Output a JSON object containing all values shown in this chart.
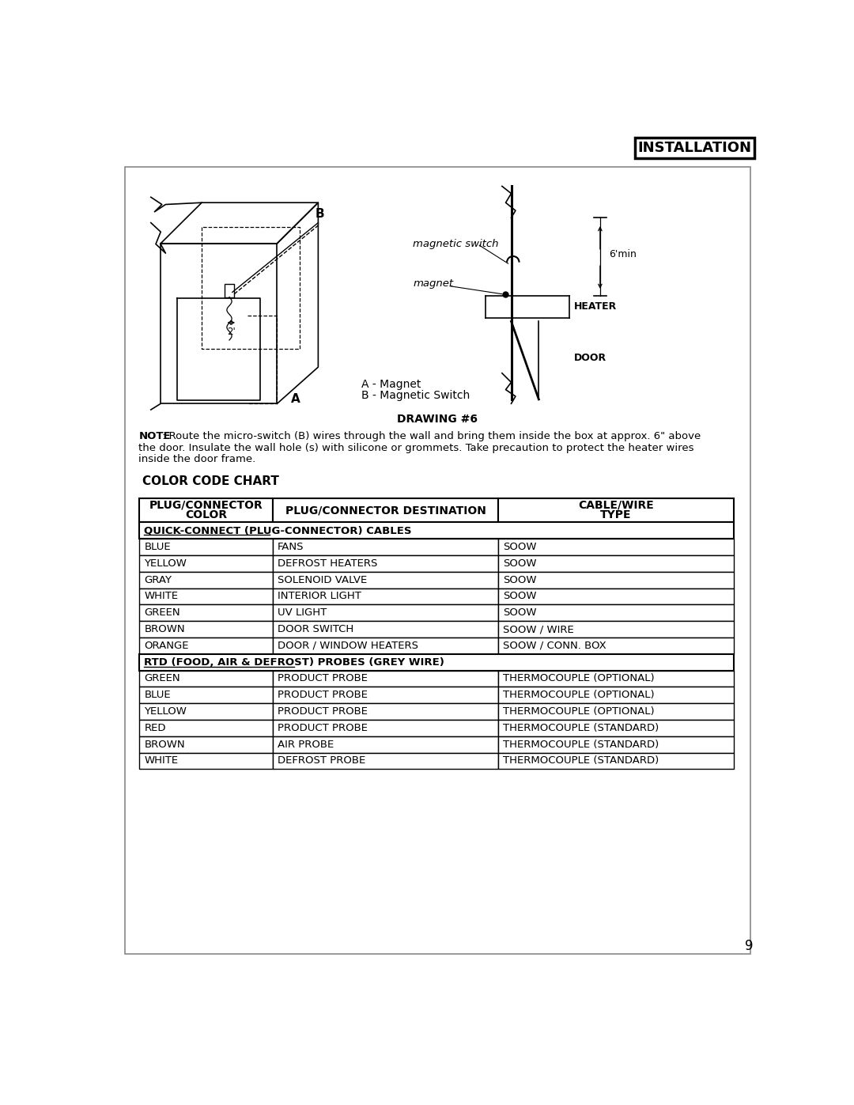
{
  "page_title": "INSTALLATION",
  "drawing_title": "DRAWING #6",
  "note_text": "NOTE: Route the micro-switch (B) wires through the wall and bring them inside the box at approx. 6\" above\nthe door. Insulate the wall hole (s) with silicone or grommets. Take precaution to protect the heater wires\ninside the door frame.",
  "color_code_title": "COLOR CODE CHART",
  "table_headers": [
    "PLUG/CONNECTOR\nCOLOR",
    "PLUG/CONNECTOR DESTINATION",
    "CABLE/WIRE\nTYPE"
  ],
  "section1_header": "QUICK-CONNECT (PLUG-CONNECTOR) CABLES",
  "section1_rows": [
    [
      "BLUE",
      "FANS",
      "SOOW"
    ],
    [
      "YELLOW",
      "DEFROST HEATERS",
      "SOOW"
    ],
    [
      "GRAY",
      "SOLENOID VALVE",
      "SOOW"
    ],
    [
      "WHITE",
      "INTERIOR LIGHT",
      "SOOW"
    ],
    [
      "GREEN",
      "UV LIGHT",
      "SOOW"
    ],
    [
      "BROWN",
      "DOOR SWITCH",
      "SOOW / WIRE"
    ],
    [
      "ORANGE",
      "DOOR / WINDOW HEATERS",
      "SOOW / CONN. BOX"
    ]
  ],
  "section2_header": "RTD (FOOD, AIR & DEFROST) PROBES (GREY WIRE)",
  "section2_rows": [
    [
      "GREEN",
      "PRODUCT PROBE",
      "THERMOCOUPLE (OPTIONAL)"
    ],
    [
      "BLUE",
      "PRODUCT PROBE",
      "THERMOCOUPLE (OPTIONAL)"
    ],
    [
      "YELLOW",
      "PRODUCT PROBE",
      "THERMOCOUPLE (OPTIONAL)"
    ],
    [
      "RED",
      "PRODUCT PROBE",
      "THERMOCOUPLE (STANDARD)"
    ],
    [
      "BROWN",
      "AIR PROBE",
      "THERMOCOUPLE (STANDARD)"
    ],
    [
      "WHITE",
      "DEFROST PROBE",
      "THERMOCOUPLE (STANDARD)"
    ]
  ],
  "page_number": "9",
  "bg_color": "#ffffff",
  "border_color": "#888888",
  "table_border_color": "#000000"
}
